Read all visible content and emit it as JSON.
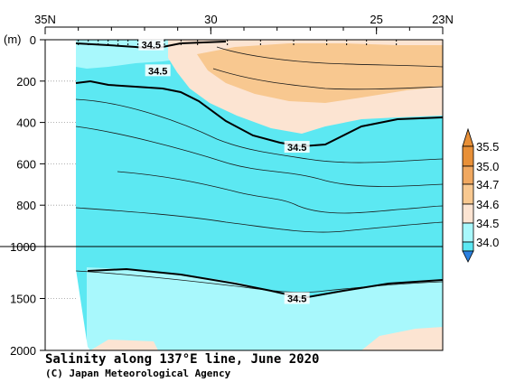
{
  "chart_data": {
    "type": "heatmap",
    "title": "Salinity along 137°E line, June 2020",
    "credit": "(C) Japan Meteorological Agency",
    "yunit": "(m)",
    "x_ticks": [
      "35N",
      "30",
      "25",
      "23N"
    ],
    "y_ticks": [
      "0",
      "200",
      "400",
      "600",
      "800",
      "1000",
      "1500",
      "2000"
    ],
    "y_axis": {
      "upper_range": [
        0,
        1000
      ],
      "lower_range": [
        1000,
        2000
      ],
      "split_at": 1000,
      "direction": "depth increases downward"
    },
    "x_axis": {
      "range_lat": [
        35,
        23
      ],
      "direction": "north to south"
    },
    "colorbar_levels": [
      "35.5",
      "35.0",
      "34.7",
      "34.6",
      "34.5",
      "34.0"
    ],
    "colors": {
      "lt_34_5": "#5ce8f2",
      "34_5_to_34_6": "#a8f8fc",
      "34_6_to_34_7": "#fce4d2",
      "34_7_to_35_0": "#f8c890",
      "35_0_to_35_5": "#f0a860",
      "gt_35_5": "#e89038",
      "below_scale": "#2a80e0"
    },
    "contour_labels": [
      {
        "value": "34.5",
        "lat": 31.8,
        "depth": 25
      },
      {
        "value": "34.5",
        "lat": 31.6,
        "depth": 150
      },
      {
        "value": "34.5",
        "lat": 27.4,
        "depth": 520
      },
      {
        "value": "34.5",
        "lat": 27.4,
        "depth": 1500
      }
    ]
  }
}
